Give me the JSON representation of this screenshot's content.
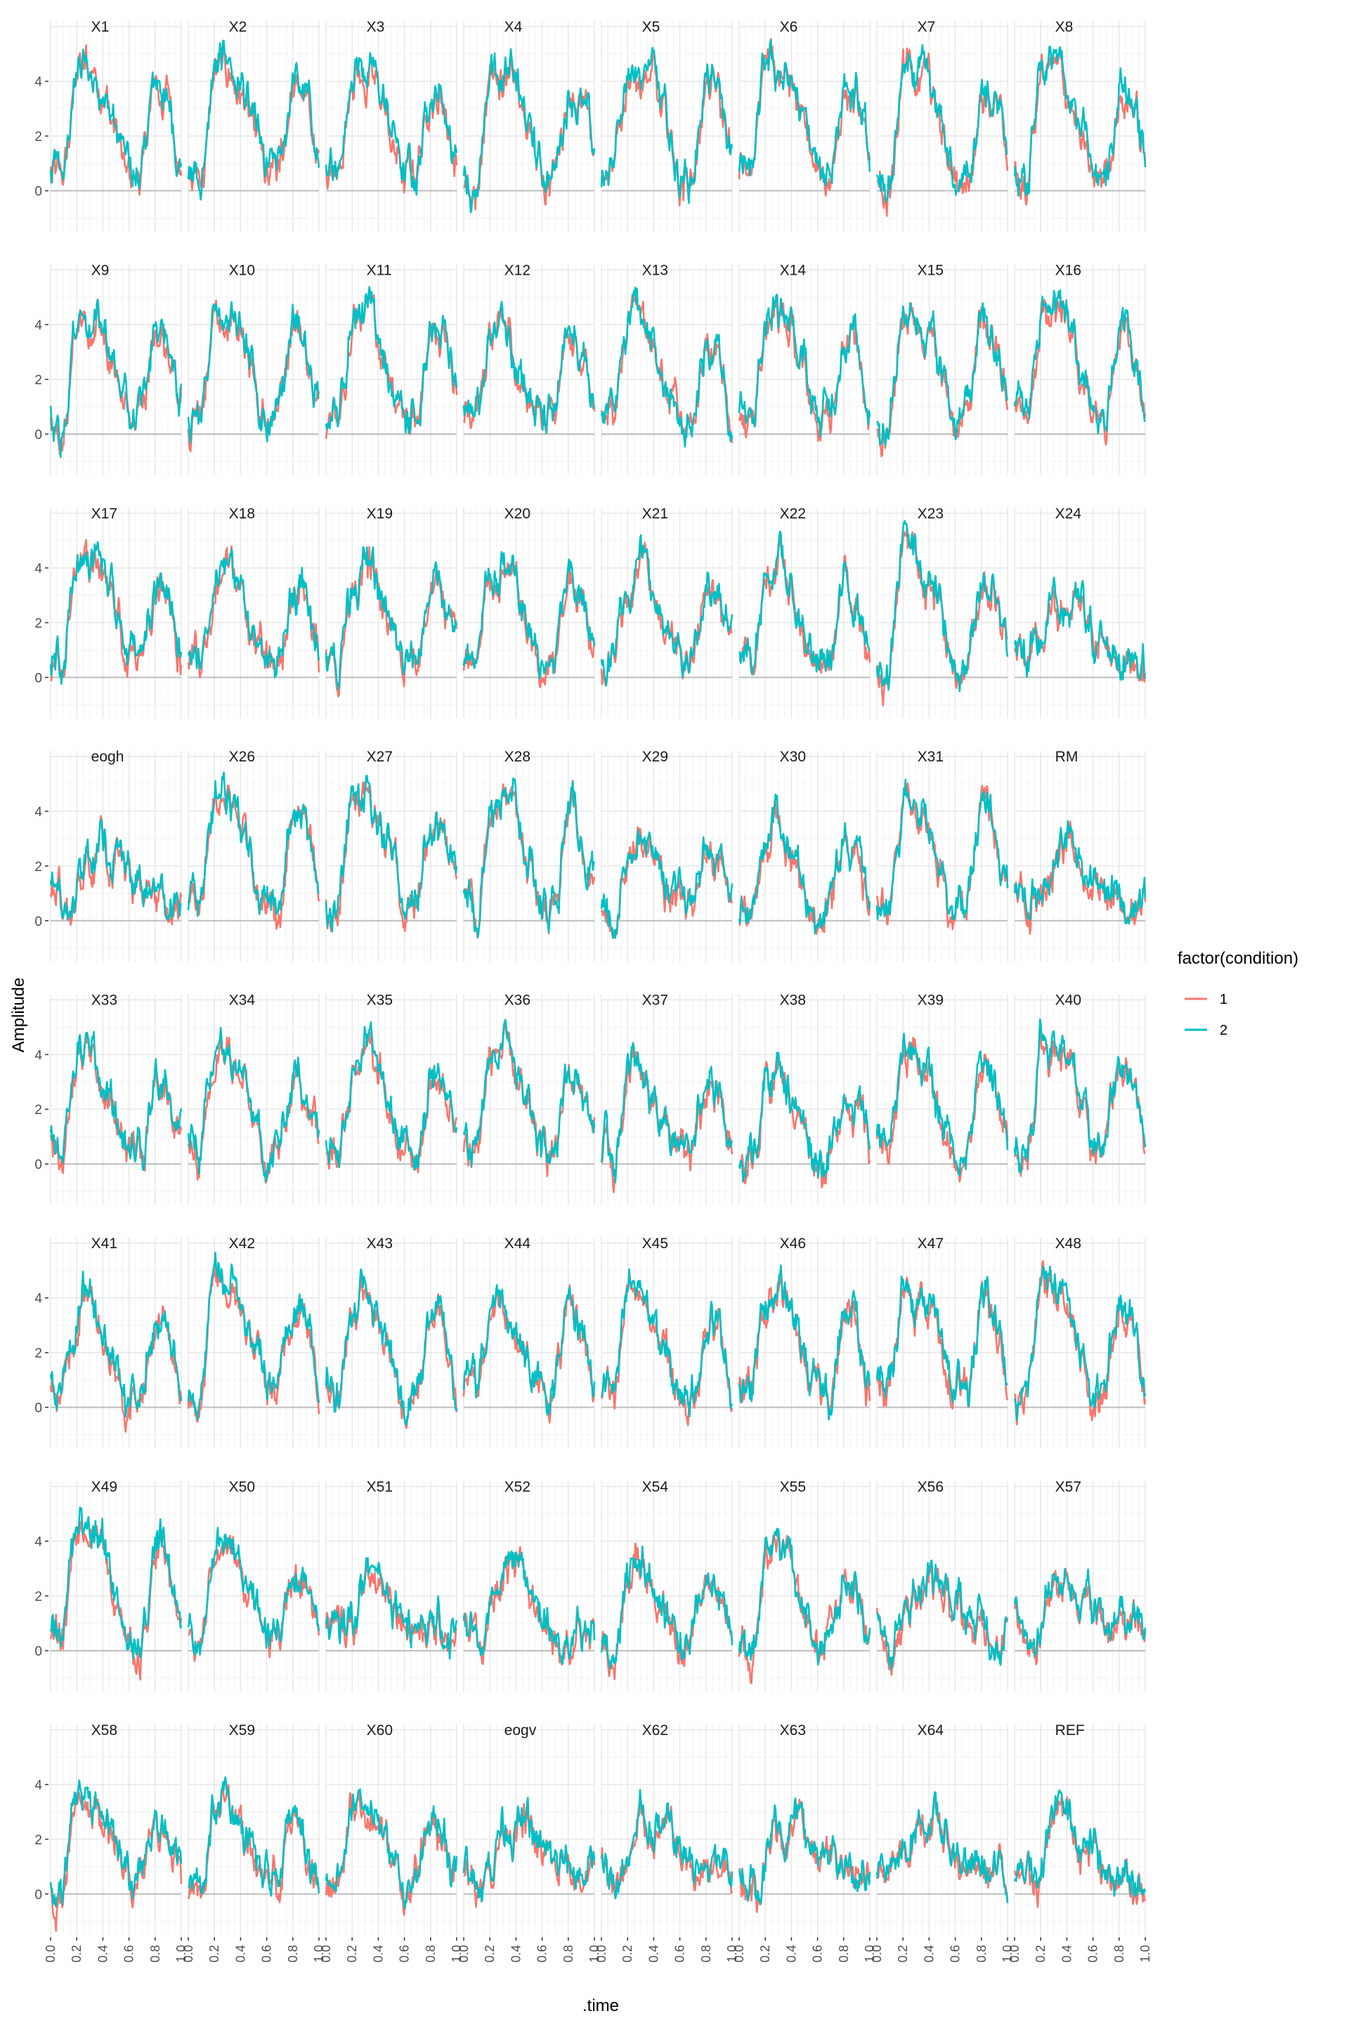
{
  "chart_data": {
    "type": "line",
    "xlabel": ".time",
    "ylabel": "Amplitude",
    "x_ticks": [
      "0.0",
      "0.2",
      "0.4",
      "0.6",
      "0.8",
      "1.0"
    ],
    "y_ticks": [
      "0",
      "2",
      "4"
    ],
    "xlim": [
      0,
      1
    ],
    "ylim": [
      -1.5,
      6.2
    ],
    "facet_grid": {
      "rows": 8,
      "cols": 8
    },
    "facets": [
      "X1",
      "X2",
      "X3",
      "X4",
      "X5",
      "X6",
      "X7",
      "X8",
      "X9",
      "X10",
      "X11",
      "X12",
      "X13",
      "X14",
      "X15",
      "X16",
      "X17",
      "X18",
      "X19",
      "X20",
      "X21",
      "X22",
      "X23",
      "X24",
      "eogh",
      "X26",
      "X27",
      "X28",
      "X29",
      "X30",
      "X31",
      "RM",
      "X33",
      "X34",
      "X35",
      "X36",
      "X37",
      "X38",
      "X39",
      "X40",
      "X41",
      "X42",
      "X43",
      "X44",
      "X45",
      "X46",
      "X47",
      "X48",
      "X49",
      "X50",
      "X51",
      "X52",
      "X54",
      "X55",
      "X56",
      "X57",
      "X58",
      "X59",
      "X60",
      "eogv",
      "X62",
      "X63",
      "X64",
      "REF"
    ],
    "legend": {
      "title": "factor(condition)",
      "position": "right",
      "entries": [
        {
          "label": "1",
          "color": "#F8766D"
        },
        {
          "label": "2",
          "color": "#00BFC4"
        }
      ]
    },
    "series_profile": {
      "note_values": "approximate mean amplitude per facet at x = 0, 0.1, ..., 1.0",
      "shapes": [
        [
          0.5,
          0.2,
          4.5,
          4.3,
          3.8,
          2.0,
          0.3,
          0.6,
          3.9,
          3.2,
          1.0
        ],
        [
          0.8,
          0.4,
          3.6,
          4.2,
          3.0,
          1.5,
          0.2,
          0.5,
          3.3,
          2.9,
          0.8
        ],
        [
          0.2,
          0.0,
          3.0,
          3.6,
          2.6,
          1.2,
          0.0,
          0.3,
          2.7,
          2.2,
          0.4
        ],
        [
          1.0,
          0.4,
          1.0,
          2.5,
          2.6,
          2.2,
          1.4,
          0.9,
          0.8,
          0.6,
          0.7
        ]
      ],
      "facet_shape": [
        0,
        0,
        0,
        0,
        0,
        0,
        0,
        0,
        0,
        0,
        0,
        1,
        1,
        0,
        0,
        0,
        0,
        1,
        1,
        1,
        1,
        1,
        0,
        3,
        3,
        0,
        0,
        0,
        2,
        2,
        0,
        3,
        1,
        1,
        1,
        1,
        2,
        2,
        1,
        0,
        1,
        0,
        1,
        1,
        1,
        1,
        0,
        0,
        0,
        1,
        3,
        3,
        2,
        2,
        3,
        3,
        2,
        2,
        2,
        3,
        3,
        3,
        3,
        3
      ]
    }
  }
}
